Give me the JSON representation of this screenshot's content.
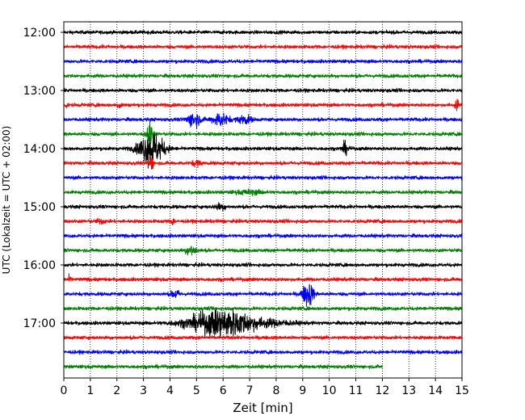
{
  "chart_data": {
    "type": "line",
    "subtype": "helicorder",
    "xlabel": "Zeit  [min]",
    "ylabel": "UTC (Lokalzeit = UTC + 02:00)",
    "xlim": [
      0,
      15
    ],
    "x_ticks": [
      0,
      1,
      2,
      3,
      4,
      5,
      6,
      7,
      8,
      9,
      10,
      11,
      12,
      13,
      14,
      15
    ],
    "x_grid": "dotted vertical lines at each minute",
    "trace_interval_minutes": 15,
    "trace_start_times": [
      "12:00",
      "12:15",
      "12:30",
      "12:45",
      "13:00",
      "13:15",
      "13:30",
      "13:45",
      "14:00",
      "14:15",
      "14:30",
      "14:45",
      "15:00",
      "15:15",
      "15:30",
      "15:45",
      "16:00",
      "16:15",
      "16:30",
      "16:45",
      "17:00",
      "17:15",
      "17:30",
      "17:45"
    ],
    "y_tick_labels": [
      "12:00",
      "13:00",
      "14:00",
      "15:00",
      "16:00",
      "17:00"
    ],
    "color_cycle": [
      "#000000",
      "#ff0000",
      "#0000ff",
      "#008000"
    ],
    "last_trace_end_minute": 12,
    "events": [
      {
        "trace": 5,
        "minute": 0.1,
        "amplitude": 0.15,
        "width": 0.06
      },
      {
        "trace": 5,
        "minute": 2.1,
        "amplitude": 0.18,
        "width": 0.1
      },
      {
        "trace": 5,
        "minute": 14.8,
        "amplitude": 0.45,
        "width": 0.06
      },
      {
        "trace": 6,
        "minute": 4.9,
        "amplitude": 0.5,
        "width": 0.25
      },
      {
        "trace": 6,
        "minute": 5.9,
        "amplitude": 0.45,
        "width": 0.3
      },
      {
        "trace": 6,
        "minute": 6.8,
        "amplitude": 0.3,
        "width": 0.25
      },
      {
        "trace": 7,
        "minute": 3.25,
        "amplitude": 1.0,
        "width": 0.12
      },
      {
        "trace": 8,
        "minute": 3.3,
        "amplitude": 1.2,
        "width": 0.45
      },
      {
        "trace": 8,
        "minute": 10.6,
        "amplitude": 0.4,
        "width": 0.12
      },
      {
        "trace": 9,
        "minute": 3.3,
        "amplitude": 0.65,
        "width": 0.06
      },
      {
        "trace": 9,
        "minute": 5.0,
        "amplitude": 0.2,
        "width": 0.15
      },
      {
        "trace": 11,
        "minute": 7.0,
        "amplitude": 0.12,
        "width": 0.5
      },
      {
        "trace": 12,
        "minute": 5.9,
        "amplitude": 0.2,
        "width": 0.2
      },
      {
        "trace": 13,
        "minute": 1.4,
        "amplitude": 0.15,
        "width": 0.15
      },
      {
        "trace": 13,
        "minute": 4.1,
        "amplitude": 0.2,
        "width": 0.08
      },
      {
        "trace": 15,
        "minute": 4.8,
        "amplitude": 0.35,
        "width": 0.2
      },
      {
        "trace": 17,
        "minute": 0.2,
        "amplitude": 0.2,
        "width": 0.08
      },
      {
        "trace": 18,
        "minute": 4.2,
        "amplitude": 0.3,
        "width": 0.15
      },
      {
        "trace": 18,
        "minute": 9.2,
        "amplitude": 0.9,
        "width": 0.2
      },
      {
        "trace": 20,
        "minute": 6.0,
        "amplitude": 1.0,
        "width": 1.2
      },
      {
        "trace": 20,
        "minute": 8.0,
        "amplitude": 0.12,
        "width": 0.8
      }
    ]
  }
}
